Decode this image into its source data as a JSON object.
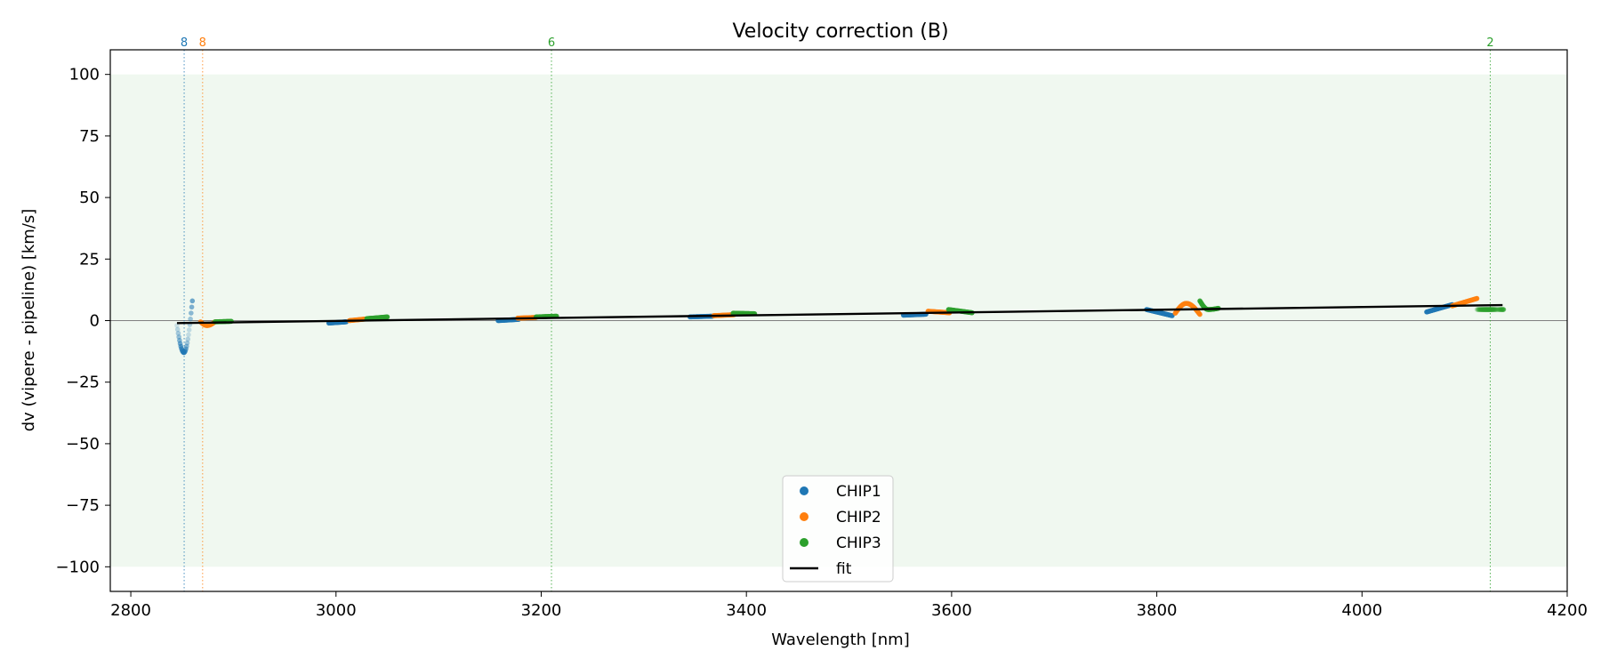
{
  "chart_data": {
    "type": "scatter",
    "title": "Velocity correction (B)",
    "xlabel": "Wavelength [nm]",
    "ylabel": "dv (vipere - pipeline) [km/s]",
    "xlim": [
      2780,
      4200
    ],
    "ylim": [
      -110,
      110
    ],
    "xticks": [
      2800,
      3000,
      3200,
      3400,
      3600,
      3800,
      4000,
      4200
    ],
    "yticks": [
      100,
      75,
      50,
      25,
      0,
      -25,
      -50,
      -75,
      -100
    ],
    "xtick_labels": [
      "2800",
      "3000",
      "3200",
      "3400",
      "3600",
      "3800",
      "4000",
      "4200"
    ],
    "ytick_labels": [
      "100",
      "75",
      "50",
      "25",
      "0",
      "−25",
      "−50",
      "−75",
      "−100"
    ],
    "shaded_band": {
      "ymin": -100,
      "ymax": 100,
      "color": "#2ca02c"
    },
    "zero_line": 0,
    "colors": {
      "CHIP1": "#1f77b4",
      "CHIP2": "#ff7f0e",
      "CHIP3": "#2ca02c",
      "fit": "#000000"
    },
    "vertical_markers": [
      {
        "x": 2852,
        "label": "8",
        "chip": "CHIP1"
      },
      {
        "x": 2870,
        "label": "8",
        "chip": "CHIP2"
      },
      {
        "x": 3210,
        "label": "6",
        "chip": "CHIP3"
      },
      {
        "x": 4125,
        "label": "2",
        "chip": "CHIP3"
      }
    ],
    "series": [
      {
        "name": "CHIP1",
        "segments": [
          {
            "x0": 2845,
            "x1": 2860,
            "shape": "dip",
            "y0": -2,
            "ymin": -13,
            "y1": 8,
            "faded": true
          },
          {
            "x0": 2993,
            "x1": 3010,
            "y0": -1,
            "y1": -0.5
          },
          {
            "x0": 3158,
            "x1": 3178,
            "y0": 0,
            "y1": 0.5
          },
          {
            "x0": 3345,
            "x1": 3367,
            "y0": 1.5,
            "y1": 1.8
          },
          {
            "x0": 3553,
            "x1": 3575,
            "y0": 2.2,
            "y1": 2.6
          },
          {
            "x0": 3790,
            "x1": 3815,
            "y0": 4.5,
            "y1": 2
          },
          {
            "x0": 4063,
            "x1": 4088,
            "y0": 3.5,
            "y1": 6.5
          }
        ]
      },
      {
        "name": "CHIP2",
        "segments": [
          {
            "x0": 2868,
            "x1": 2882,
            "shape": "dip",
            "y0": -0.5,
            "ymin": -2,
            "y1": -0.5
          },
          {
            "x0": 3013,
            "x1": 3030,
            "y0": 0,
            "y1": 0.7
          },
          {
            "x0": 3177,
            "x1": 3195,
            "y0": 1,
            "y1": 1.3
          },
          {
            "x0": 3368,
            "x1": 3388,
            "y0": 2,
            "y1": 2.4
          },
          {
            "x0": 3577,
            "x1": 3598,
            "y0": 3.8,
            "y1": 3.2
          },
          {
            "x0": 3818,
            "x1": 3842,
            "shape": "bump",
            "y0": 3,
            "ymin": 7,
            "y1": 2.5
          },
          {
            "x0": 4088,
            "x1": 4112,
            "y0": 6,
            "y1": 9
          }
        ]
      },
      {
        "name": "CHIP3",
        "segments": [
          {
            "x0": 2882,
            "x1": 2898,
            "y0": -0.5,
            "y1": -0.3
          },
          {
            "x0": 3030,
            "x1": 3050,
            "y0": 0.8,
            "y1": 1.5
          },
          {
            "x0": 3195,
            "x1": 3215,
            "y0": 1.5,
            "y1": 1.8
          },
          {
            "x0": 3387,
            "x1": 3408,
            "y0": 3,
            "y1": 2.8
          },
          {
            "x0": 3597,
            "x1": 3620,
            "y0": 4.5,
            "y1": 3.2
          },
          {
            "x0": 3842,
            "x1": 3860,
            "shape": "dip",
            "y0": 8,
            "ymin": 4.5,
            "y1": 5
          },
          {
            "x0": 4112,
            "x1": 4138,
            "y0": 4.5,
            "y1": 4.5,
            "faded": true
          }
        ]
      }
    ],
    "fit": {
      "x": [
        2845,
        4137
      ],
      "y": [
        -1,
        6.3
      ]
    },
    "legend": {
      "position": "lower-center",
      "entries": [
        {
          "label": "CHIP1",
          "kind": "marker",
          "key": "CHIP1"
        },
        {
          "label": "CHIP2",
          "kind": "marker",
          "key": "CHIP2"
        },
        {
          "label": "CHIP3",
          "kind": "marker",
          "key": "CHIP3"
        },
        {
          "label": "fit",
          "kind": "line",
          "key": "fit"
        }
      ]
    }
  }
}
